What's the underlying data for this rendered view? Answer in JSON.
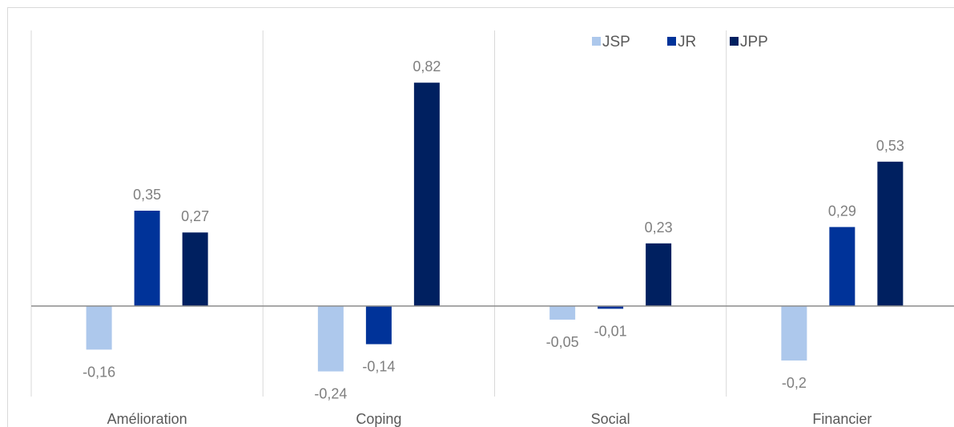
{
  "chart_data": {
    "type": "bar",
    "categories": [
      "Amélioration",
      "Coping",
      "Social",
      "Financier"
    ],
    "series": [
      {
        "name": "JSP",
        "color": "#adc8ec",
        "values": [
          -0.16,
          -0.24,
          -0.05,
          -0.2
        ],
        "labels": [
          "-0,16",
          "-0,24",
          "-0,05",
          "-0,2"
        ]
      },
      {
        "name": "JR",
        "color": "#003399",
        "values": [
          0.35,
          -0.14,
          -0.01,
          0.29
        ],
        "labels": [
          "0,35",
          "-0,14",
          "-0,01",
          "0,29"
        ]
      },
      {
        "name": "JPP",
        "color": "#002060",
        "values": [
          0.27,
          0.82,
          0.23,
          0.53
        ],
        "labels": [
          "0,27",
          "0,82",
          "0,23",
          "0,53"
        ]
      }
    ],
    "ylim": [
      -0.3,
      1.0
    ],
    "legend": "top-right",
    "grid": "vertical category separators"
  }
}
